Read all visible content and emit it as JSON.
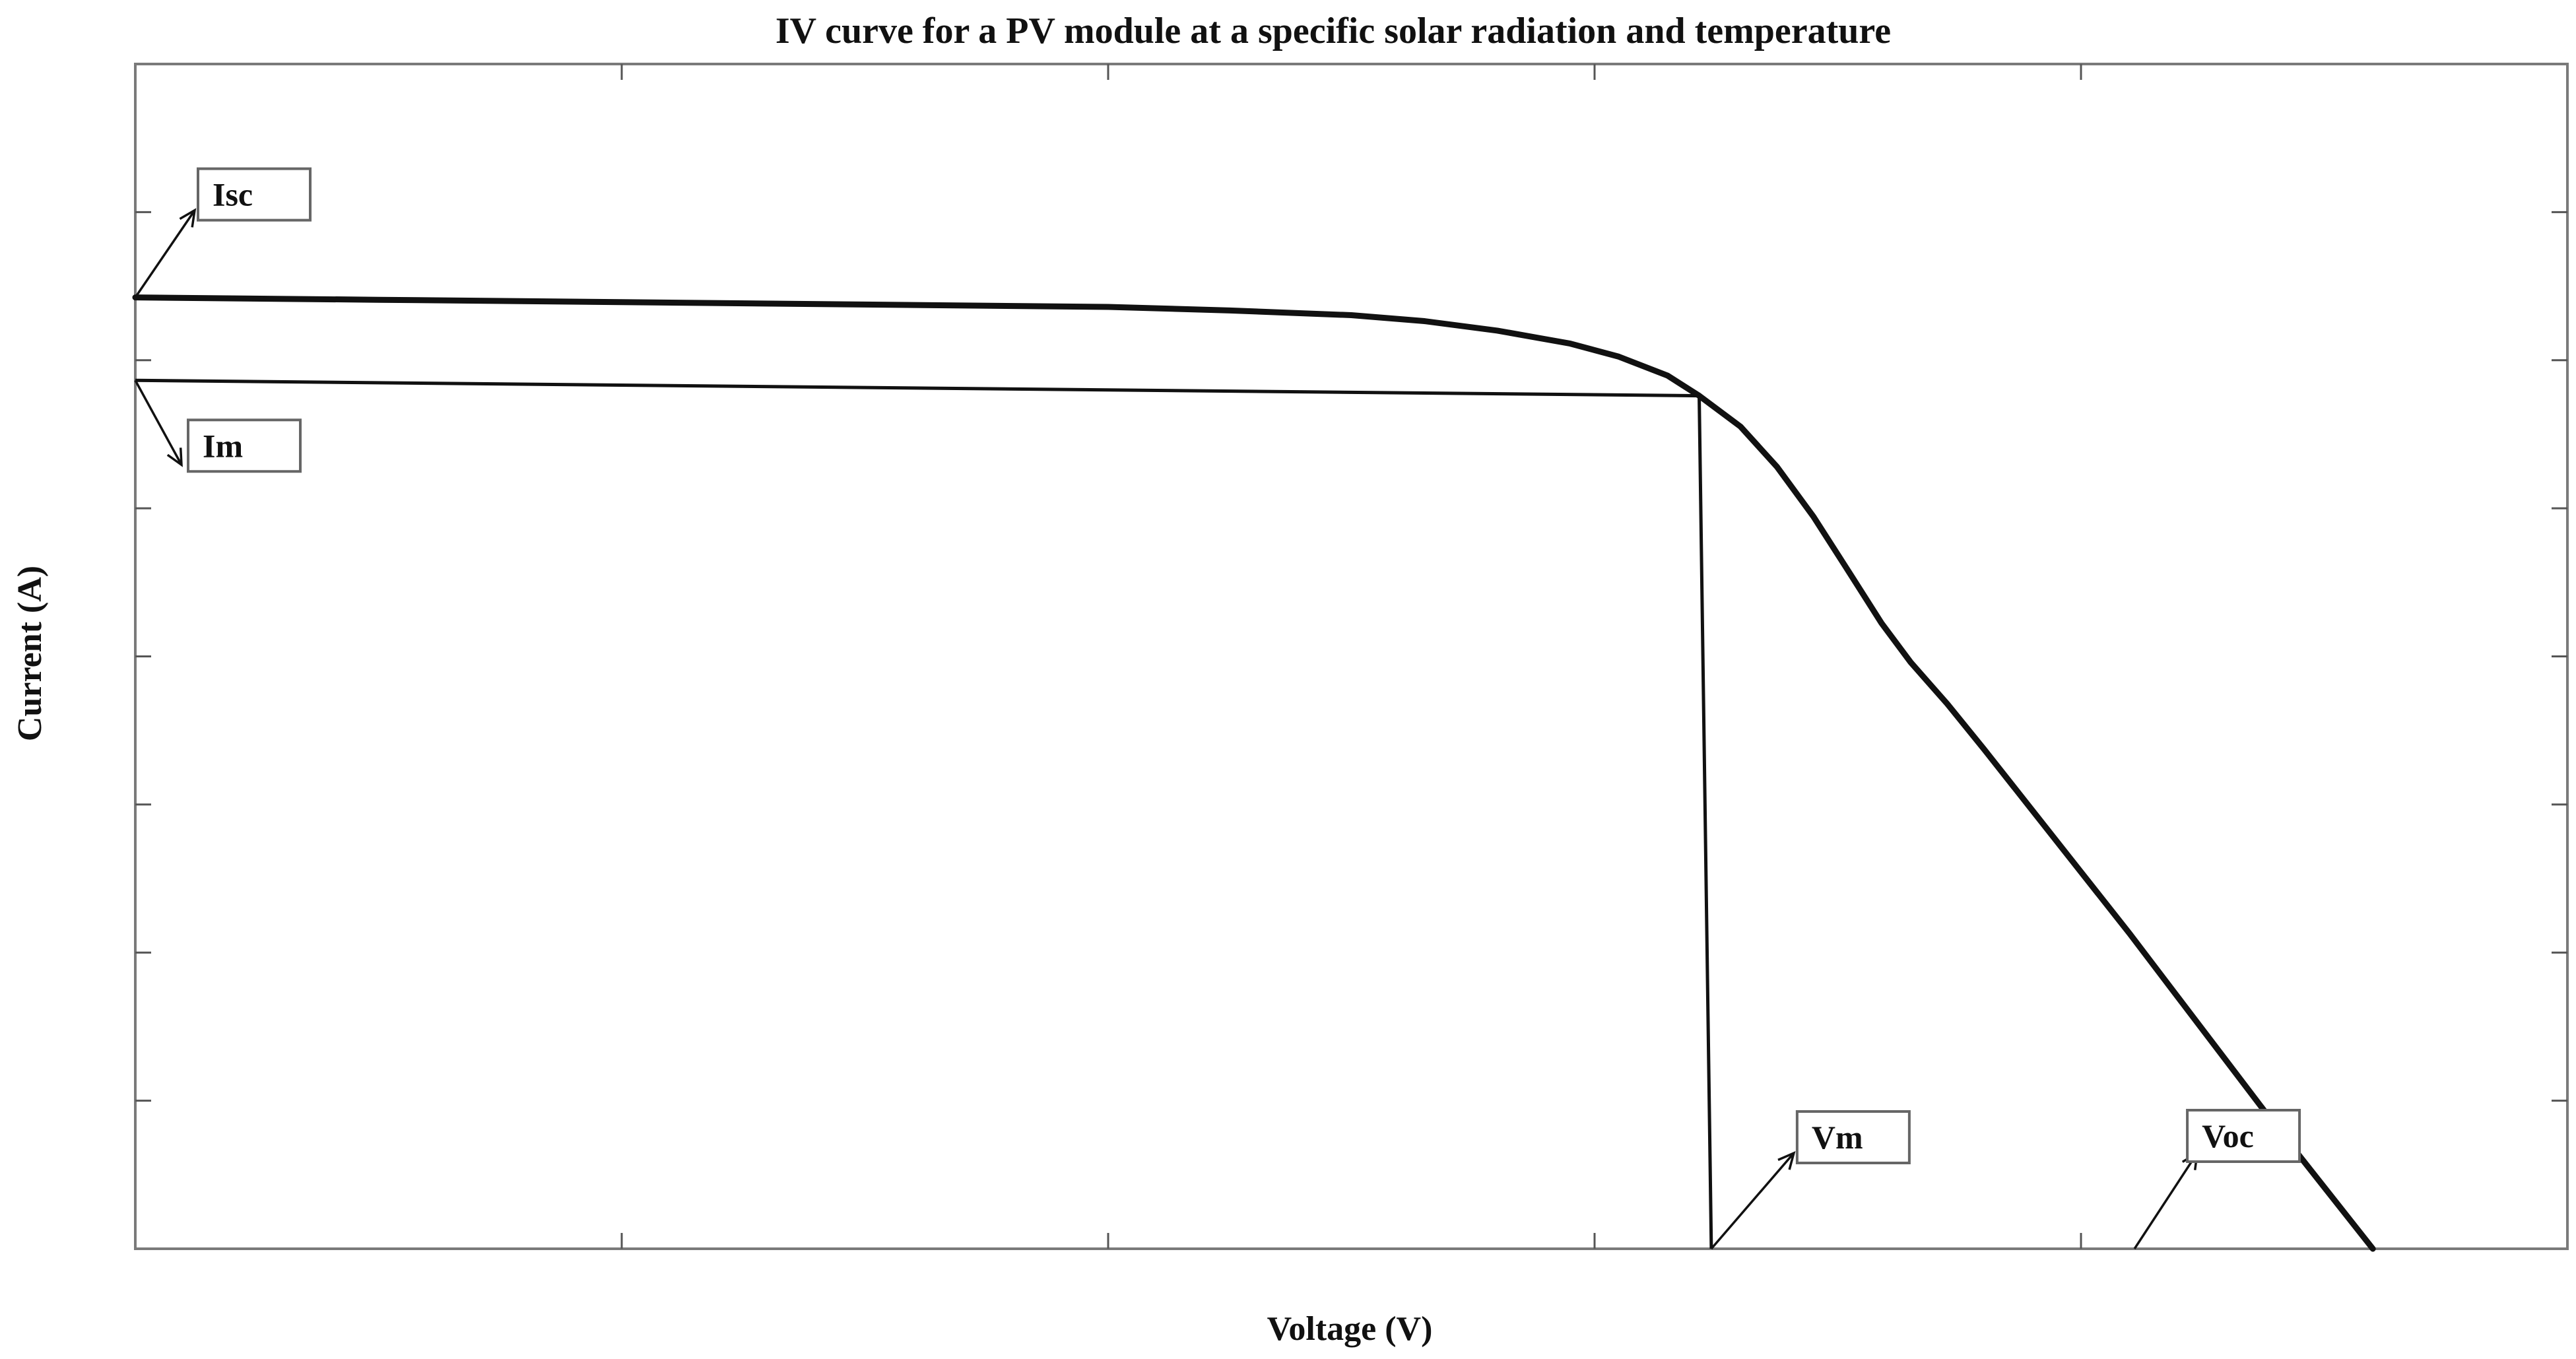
{
  "chart_data": {
    "type": "line",
    "title": "IV curve for a PV module at a specific solar radiation and temperature",
    "xlabel": "Voltage (V)",
    "ylabel": "Current (A)",
    "xlim": [
      0,
      1
    ],
    "ylim": [
      0,
      1
    ],
    "grid": false,
    "tick_labels_shown": false,
    "series": [
      {
        "points": [
          [
            0.0,
            0.803
          ],
          [
            0.1,
            0.801
          ],
          [
            0.2,
            0.799
          ],
          [
            0.3,
            0.797
          ],
          [
            0.4,
            0.795
          ],
          [
            0.45,
            0.792
          ],
          [
            0.5,
            0.788
          ],
          [
            0.53,
            0.783
          ],
          [
            0.56,
            0.775
          ],
          [
            0.59,
            0.764
          ],
          [
            0.61,
            0.753
          ],
          [
            0.63,
            0.737
          ],
          [
            0.643,
            0.72
          ],
          [
            0.66,
            0.694
          ],
          [
            0.675,
            0.66
          ],
          [
            0.69,
            0.618
          ],
          [
            0.705,
            0.57
          ],
          [
            0.718,
            0.528
          ],
          [
            0.73,
            0.495
          ],
          [
            0.745,
            0.46
          ],
          [
            0.76,
            0.422
          ],
          [
            0.78,
            0.37
          ],
          [
            0.8,
            0.318
          ],
          [
            0.82,
            0.266
          ],
          [
            0.84,
            0.212
          ],
          [
            0.86,
            0.158
          ],
          [
            0.88,
            0.104
          ],
          [
            0.9,
            0.052
          ],
          [
            0.92,
            0.0
          ]
        ]
      }
    ],
    "max_power_point": {
      "v": 0.643,
      "i": 0.72,
      "guide_start_i": 0.733,
      "drop_v": 0.648
    },
    "annotations": [
      {
        "label": "Isc",
        "at": [
          0.0,
          0.803
        ]
      },
      {
        "label": "Im",
        "at": [
          0.0,
          0.733
        ]
      },
      {
        "label": "Vm",
        "at": [
          0.648,
          0.0
        ]
      },
      {
        "label": "Voc",
        "at": [
          0.822,
          0.0
        ]
      }
    ]
  }
}
